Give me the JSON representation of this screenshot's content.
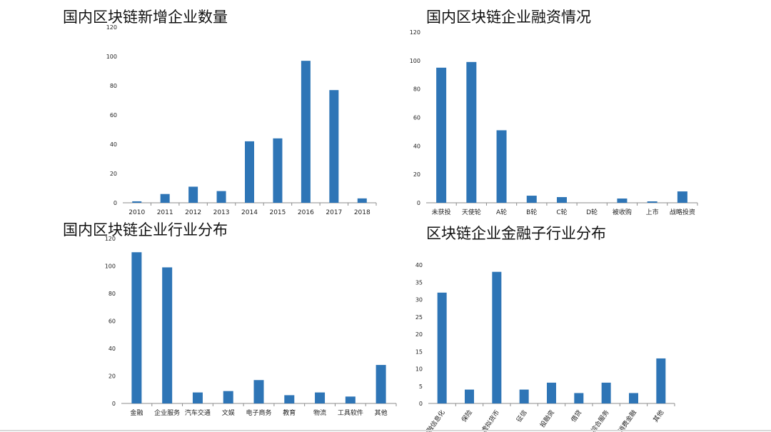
{
  "colors": {
    "bar": "#2E75B6",
    "axis": "#8c8c8c",
    "text": "#222222"
  },
  "chart_data": [
    {
      "type": "bar",
      "title": "国内区块链新增企业数量",
      "categories": [
        "2010",
        "2011",
        "2012",
        "2013",
        "2014",
        "2015",
        "2016",
        "2017",
        "2018"
      ],
      "values": [
        1,
        6,
        11,
        8,
        42,
        44,
        97,
        77,
        3
      ],
      "ylim": [
        0,
        120
      ],
      "yticks": [
        "0",
        "20",
        "40",
        "60",
        "80",
        "100",
        "120"
      ],
      "grid": false,
      "legend": "none"
    },
    {
      "type": "bar",
      "title": "国内区块链企业融资情况",
      "categories": [
        "未获投",
        "天使轮",
        "A轮",
        "B轮",
        "C轮",
        "D轮",
        "被收购",
        "上市",
        "战略投资"
      ],
      "values": [
        95,
        99,
        51,
        5,
        4,
        0,
        3,
        1,
        8
      ],
      "ylim": [
        0,
        120
      ],
      "yticks": [
        "0",
        "20",
        "40",
        "60",
        "80",
        "100",
        "120"
      ],
      "grid": false,
      "legend": "none"
    },
    {
      "type": "bar",
      "title": "国内区块链企业行业分布",
      "categories": [
        "金融",
        "企业服务",
        "汽车交通",
        "文娱",
        "电子商务",
        "教育",
        "物流",
        "工具软件",
        "其他"
      ],
      "values": [
        110,
        99,
        8,
        9,
        17,
        6,
        8,
        5,
        28
      ],
      "ylim": [
        0,
        120
      ],
      "yticks": [
        "0",
        "20",
        "40",
        "60",
        "80",
        "100",
        "120"
      ],
      "grid": false,
      "legend": "none"
    },
    {
      "type": "bar",
      "title": "区块链企业金融子行业分布",
      "categories": [
        "金融信息化",
        "保险",
        "虚拟货币",
        "征信",
        "投融资",
        "借贷",
        "综合服务",
        "消费金融",
        "其他"
      ],
      "values": [
        32,
        4,
        38,
        4,
        6,
        3,
        6,
        3,
        13
      ],
      "ylim": [
        0,
        40
      ],
      "yticks": [
        "0",
        "5",
        "10",
        "15",
        "20",
        "25",
        "30",
        "35",
        "40"
      ],
      "grid": false,
      "legend": "none",
      "rotated_labels": true
    }
  ]
}
